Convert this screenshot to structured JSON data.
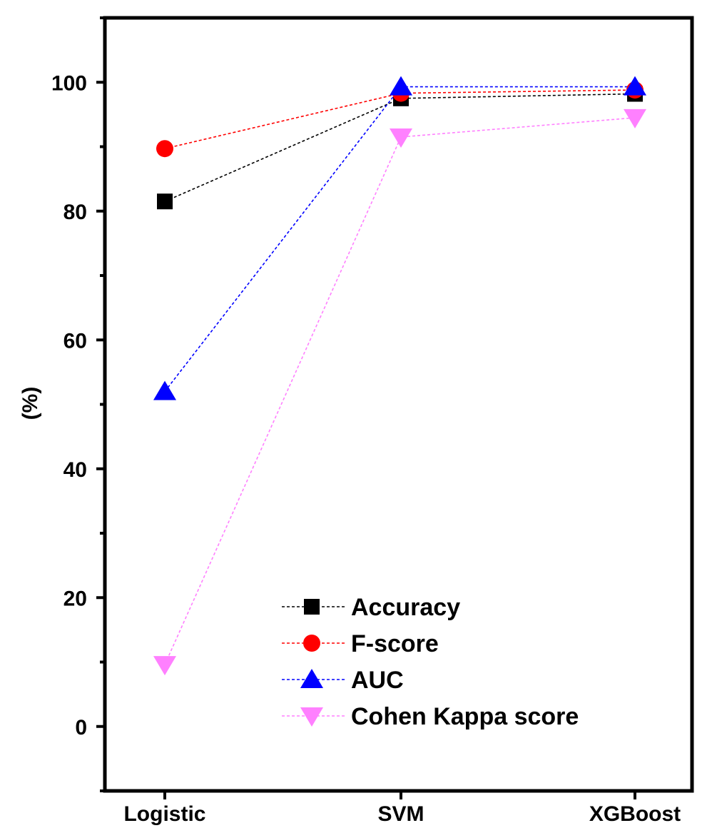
{
  "chart_data": {
    "type": "line",
    "title": "",
    "xlabel": "",
    "ylabel": "(%)",
    "categories": [
      "Logistic",
      "SVM",
      "XGBoost"
    ],
    "ylim": [
      -10,
      110
    ],
    "yticks": [
      0,
      20,
      40,
      60,
      80,
      100
    ],
    "minor_y_step": 10,
    "legend_position": "lower-right",
    "grid": false,
    "series": [
      {
        "name": "Accuracy",
        "values": [
          81.5,
          97.5,
          98.2
        ],
        "color": "#000000",
        "marker": "square"
      },
      {
        "name": "F-score",
        "values": [
          89.7,
          98.3,
          98.8
        ],
        "color": "#ff0000",
        "marker": "circle"
      },
      {
        "name": "AUC",
        "values": [
          52,
          99.3,
          99.3
        ],
        "color": "#0000ff",
        "marker": "triangle-up"
      },
      {
        "name": "Cohen Kappa score",
        "values": [
          9.6,
          91.5,
          94.5
        ],
        "color": "#ff80ff",
        "marker": "triangle-down"
      }
    ]
  }
}
